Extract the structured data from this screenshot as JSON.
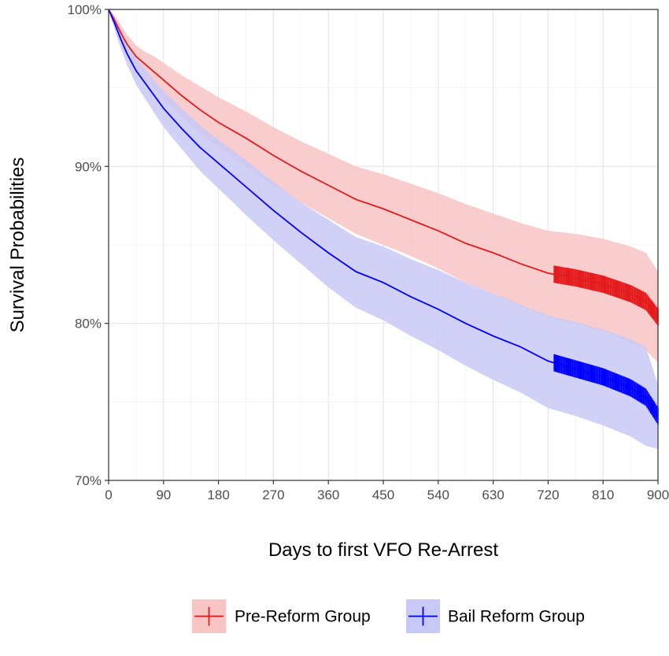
{
  "chart_data": {
    "type": "line",
    "subtype": "kaplan-meier survival curve with confidence bands",
    "xlabel": "Days to first VFO Re-Arrest",
    "ylabel": "Survival Probabilities",
    "xlim": [
      0,
      900
    ],
    "ylim": [
      0.7,
      1.0
    ],
    "x_ticks": [
      0,
      90,
      180,
      270,
      360,
      450,
      540,
      630,
      720,
      810,
      900
    ],
    "x_tick_labels": [
      "0",
      "90",
      "180",
      "270",
      "360",
      "450",
      "540",
      "630",
      "720",
      "810",
      "900"
    ],
    "y_ticks": [
      0.7,
      0.8,
      0.9,
      1.0
    ],
    "y_tick_labels": [
      "70%",
      "80%",
      "90%",
      "100%"
    ],
    "grid": true,
    "legend_position": "bottom",
    "series": [
      {
        "name": "Pre-Reform Group",
        "color": "#e41a1c",
        "band_color": "#f8c4c4",
        "x": [
          0,
          10,
          20,
          30,
          45,
          60,
          75,
          90,
          120,
          150,
          180,
          225,
          270,
          315,
          360,
          405,
          450,
          495,
          540,
          585,
          630,
          675,
          720,
          765,
          810,
          855,
          880,
          900
        ],
        "y": [
          1.0,
          0.993,
          0.985,
          0.978,
          0.97,
          0.965,
          0.96,
          0.955,
          0.945,
          0.936,
          0.928,
          0.918,
          0.907,
          0.897,
          0.888,
          0.879,
          0.873,
          0.866,
          0.859,
          0.851,
          0.845,
          0.838,
          0.832,
          0.829,
          0.825,
          0.819,
          0.814,
          0.804
        ],
        "lower": [
          1.0,
          0.989,
          0.98,
          0.971,
          0.962,
          0.955,
          0.949,
          0.943,
          0.931,
          0.921,
          0.912,
          0.9,
          0.888,
          0.877,
          0.867,
          0.857,
          0.85,
          0.843,
          0.835,
          0.826,
          0.819,
          0.811,
          0.804,
          0.8,
          0.795,
          0.788,
          0.783,
          0.775
        ],
        "upper": [
          1.0,
          0.996,
          0.99,
          0.984,
          0.977,
          0.973,
          0.97,
          0.966,
          0.958,
          0.951,
          0.944,
          0.935,
          0.925,
          0.916,
          0.908,
          0.9,
          0.895,
          0.889,
          0.883,
          0.876,
          0.87,
          0.864,
          0.859,
          0.857,
          0.854,
          0.849,
          0.845,
          0.833
        ],
        "censor_mark_start": 730
      },
      {
        "name": "Bail Reform Group",
        "color": "#0000ff",
        "band_color": "#c9c9f7",
        "x": [
          0,
          10,
          20,
          30,
          45,
          60,
          75,
          90,
          120,
          150,
          180,
          225,
          270,
          315,
          360,
          405,
          450,
          495,
          540,
          585,
          630,
          675,
          720,
          765,
          810,
          855,
          880,
          900
        ],
        "y": [
          1.0,
          0.991,
          0.981,
          0.972,
          0.961,
          0.953,
          0.945,
          0.937,
          0.924,
          0.912,
          0.902,
          0.887,
          0.872,
          0.858,
          0.845,
          0.833,
          0.826,
          0.817,
          0.809,
          0.8,
          0.792,
          0.785,
          0.776,
          0.771,
          0.766,
          0.759,
          0.753,
          0.741
        ],
        "lower": [
          1.0,
          0.987,
          0.975,
          0.965,
          0.952,
          0.943,
          0.934,
          0.925,
          0.911,
          0.897,
          0.886,
          0.869,
          0.853,
          0.838,
          0.823,
          0.81,
          0.802,
          0.792,
          0.783,
          0.773,
          0.764,
          0.756,
          0.746,
          0.741,
          0.735,
          0.728,
          0.722,
          0.72
        ],
        "upper": [
          1.0,
          0.994,
          0.986,
          0.978,
          0.969,
          0.962,
          0.955,
          0.948,
          0.937,
          0.926,
          0.917,
          0.904,
          0.89,
          0.877,
          0.866,
          0.855,
          0.849,
          0.841,
          0.834,
          0.826,
          0.819,
          0.812,
          0.805,
          0.801,
          0.796,
          0.79,
          0.785,
          0.761
        ],
        "censor_mark_start": 730
      }
    ]
  }
}
